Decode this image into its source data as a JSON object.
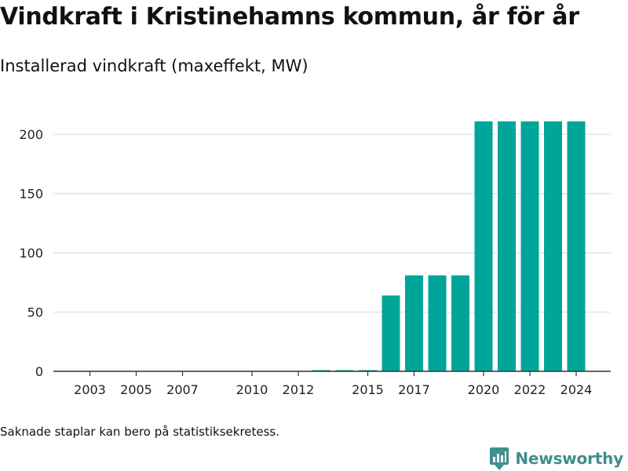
{
  "colors": {
    "bar": "#00a59a",
    "grid": "#dddddd",
    "axis": "#333333",
    "brand": "#3f8f8c"
  },
  "footnote": "Saknade staplar kan bero på statistiksekretess.",
  "brand": {
    "name": "Newsworthy",
    "logo_icon": "newsworthy-logo-icon"
  },
  "chart_data": {
    "type": "bar",
    "title": "Vindkraft i Kristinehamns kommun, år för år",
    "subtitle": "Installerad vindkraft (maxeffekt, MW)",
    "categories": [
      "2002",
      "2003",
      "2004",
      "2005",
      "2006",
      "2007",
      "2008",
      "2009",
      "2010",
      "2011",
      "2012",
      "2013",
      "2014",
      "2015",
      "2016",
      "2017",
      "2018",
      "2019",
      "2020",
      "2021",
      "2022",
      "2023",
      "2024"
    ],
    "values": [
      0,
      0,
      0,
      0,
      0,
      0,
      0,
      0,
      0,
      0,
      0,
      1,
      1,
      1,
      64,
      81,
      81,
      81,
      211,
      211,
      211,
      211,
      211
    ],
    "x_tick_labels": [
      "2003",
      "2005",
      "2007",
      "2010",
      "2012",
      "2015",
      "2017",
      "2020",
      "2022",
      "2024"
    ],
    "y_ticks": [
      0,
      50,
      100,
      150,
      200
    ],
    "ylim": [
      0,
      220
    ],
    "grid": true,
    "legend": "none"
  }
}
